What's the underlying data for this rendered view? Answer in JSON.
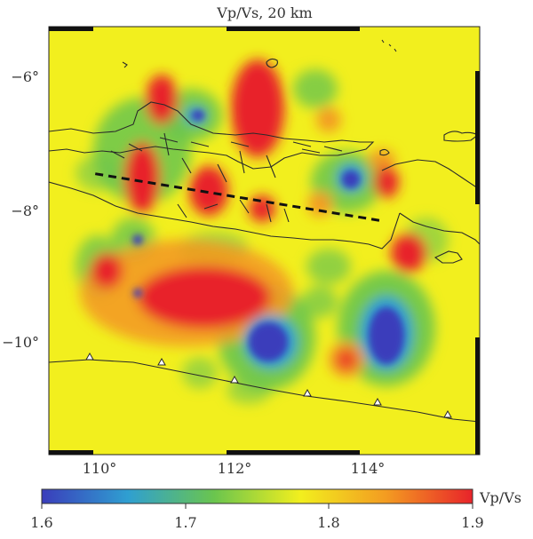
{
  "map": {
    "title": "Vp/Vs, 20 km",
    "x_ticks": [
      "110°",
      "112°",
      "114°"
    ],
    "y_ticks": [
      "−6°",
      "−8°",
      "−10°"
    ],
    "x_range": [
      109.3,
      115.8
    ],
    "y_range": [
      -11.7,
      -5.3
    ],
    "profile_line": {
      "from": [
        110.0,
        -7.5
      ],
      "to": [
        114.3,
        -8.2
      ],
      "style": "dashed"
    }
  },
  "colorbar": {
    "label": "Vp/Vs",
    "range": [
      1.6,
      1.9
    ],
    "tick_labels": [
      "1.6",
      "1.7",
      "1.8",
      "1.9"
    ],
    "colors": [
      "#3a3dbb",
      "#2f9fd1",
      "#6ac54e",
      "#f2ef1e",
      "#f39b21",
      "#e8232a"
    ]
  },
  "colors": {
    "background": "#f2ef1e",
    "high": "#e8232a",
    "low": "#3a3dbb",
    "coast": "#2a2a2a"
  }
}
